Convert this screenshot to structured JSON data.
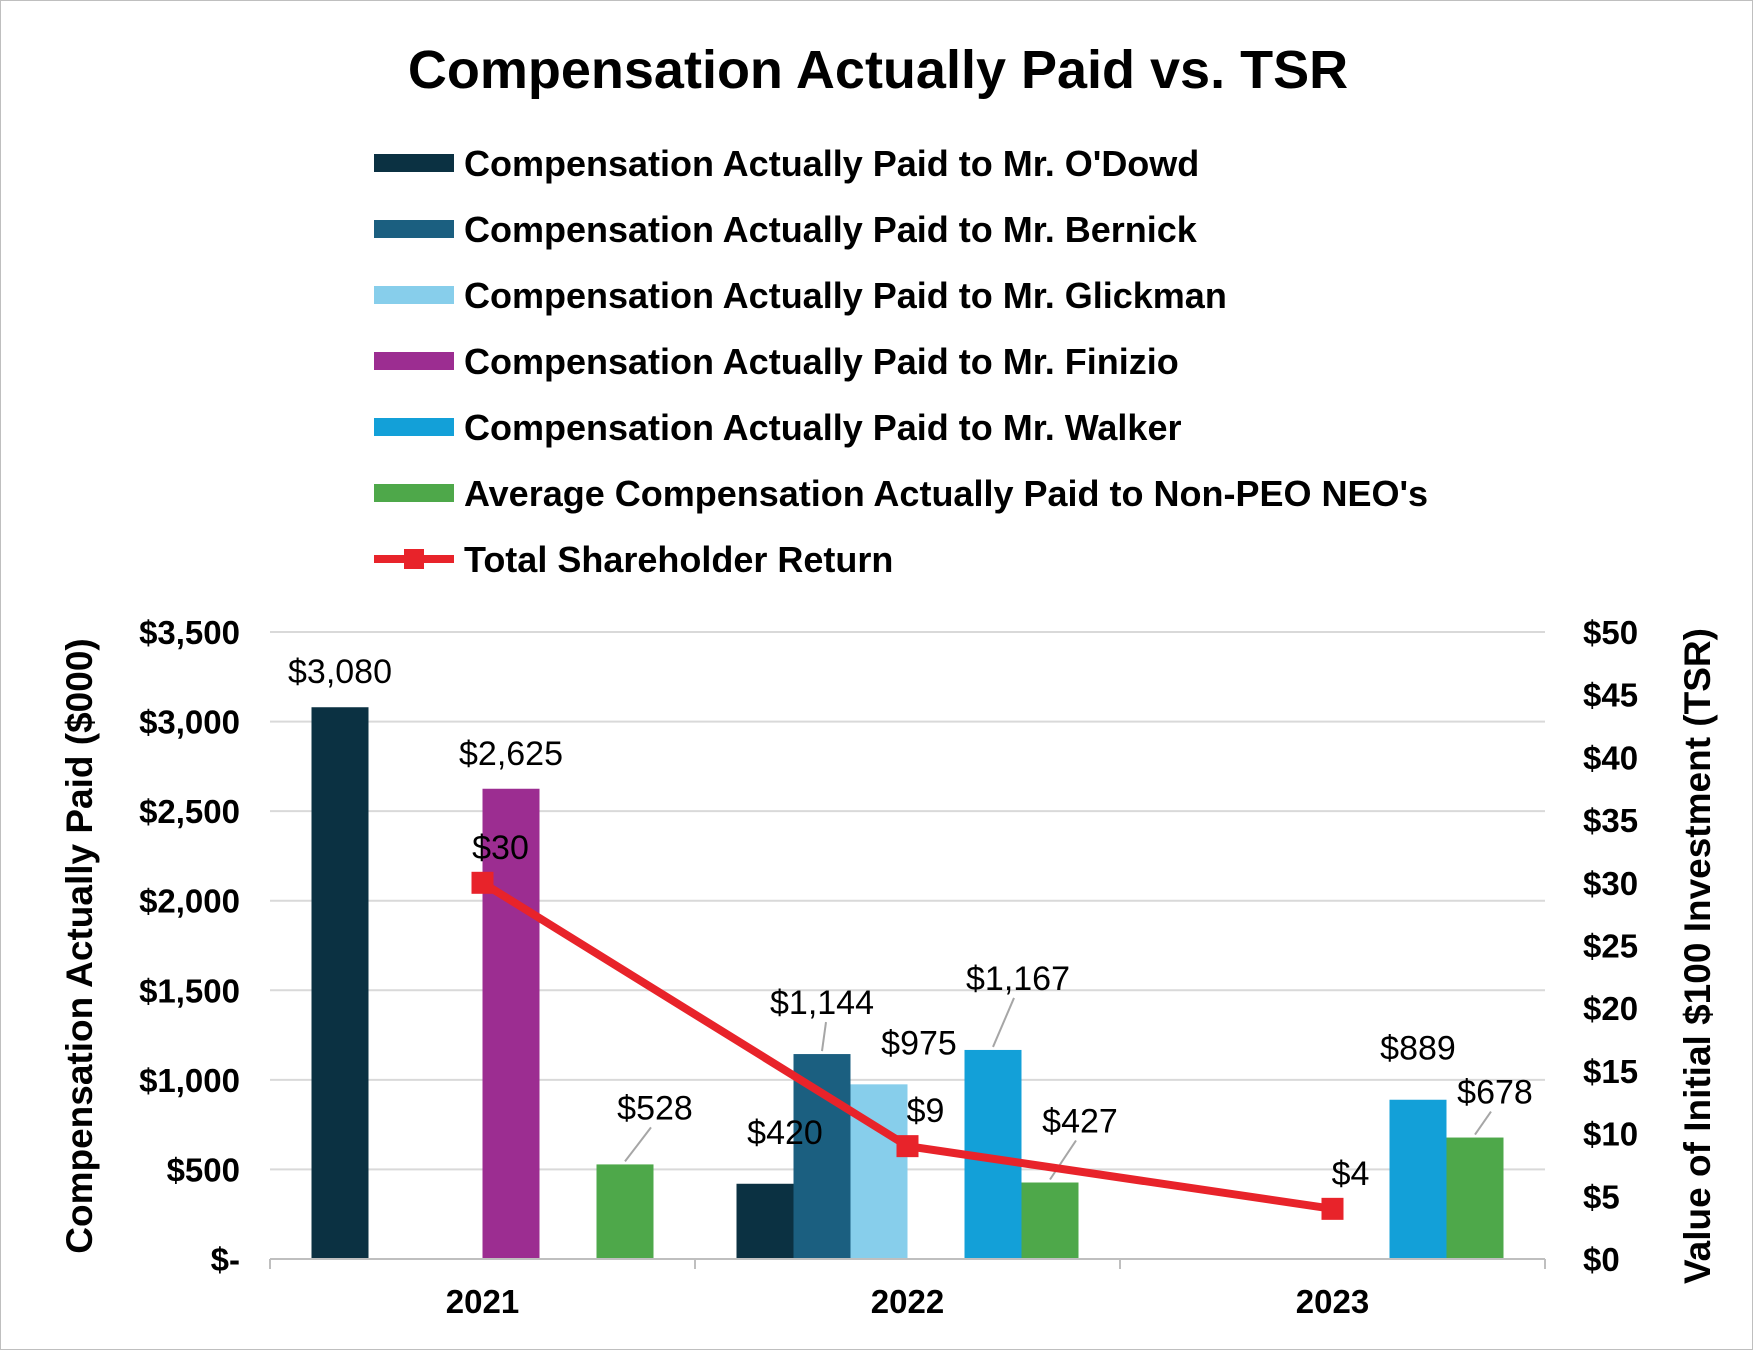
{
  "chart_data": {
    "type": "bar",
    "title": "Compensation Actually Paid vs. TSR",
    "categories": [
      "2021",
      "2022",
      "2023"
    ],
    "series": [
      {
        "name": "Compensation Actually Paid to Mr. O'Dowd",
        "color": "#0b3142",
        "values": [
          3080,
          420,
          null
        ],
        "labels": [
          "$3,080",
          "$420",
          null
        ]
      },
      {
        "name": "Compensation Actually Paid to Mr. Bernick",
        "color": "#1b5f80",
        "values": [
          null,
          1144,
          null
        ],
        "labels": [
          null,
          "$1,144",
          null
        ]
      },
      {
        "name": "Compensation Actually Paid to Mr. Glickman",
        "color": "#87ceeb",
        "values": [
          null,
          975,
          null
        ],
        "labels": [
          null,
          "$975",
          null
        ]
      },
      {
        "name": "Compensation Actually Paid to Mr. Finizio",
        "color": "#9c2d91",
        "values": [
          2625,
          null,
          null
        ],
        "labels": [
          "$2,625",
          null,
          null
        ]
      },
      {
        "name": "Compensation Actually Paid to Mr. Walker",
        "color": "#13a0d8",
        "values": [
          null,
          1167,
          889
        ],
        "labels": [
          null,
          "$1,167",
          "$889"
        ]
      },
      {
        "name": "Average Compensation Actually Paid to Non-PEO NEO's",
        "color": "#4ea84a",
        "values": [
          528,
          427,
          678
        ],
        "labels": [
          "$528",
          "$427",
          "$678"
        ]
      }
    ],
    "line": {
      "name": "Total Shareholder Return",
      "color": "#e8232a",
      "values": [
        30,
        9,
        4
      ],
      "labels": [
        "$30",
        "$9",
        "$4"
      ],
      "axis": "secondary"
    },
    "ylabel": "Compensation Actually Paid ($000)",
    "y2label": "Value of Initial $100 Investment (TSR)",
    "ylim": [
      0,
      3500
    ],
    "y2lim": [
      0,
      50
    ],
    "yticks": [
      "$-",
      "$500",
      "$1,000",
      "$1,500",
      "$2,000",
      "$2,500",
      "$3,000",
      "$3,500"
    ],
    "y2ticks": [
      "$0",
      "$5",
      "$10",
      "$15",
      "$20",
      "$25",
      "$30",
      "$35",
      "$40",
      "$45",
      "$50"
    ],
    "grid": true,
    "legend": "top"
  }
}
